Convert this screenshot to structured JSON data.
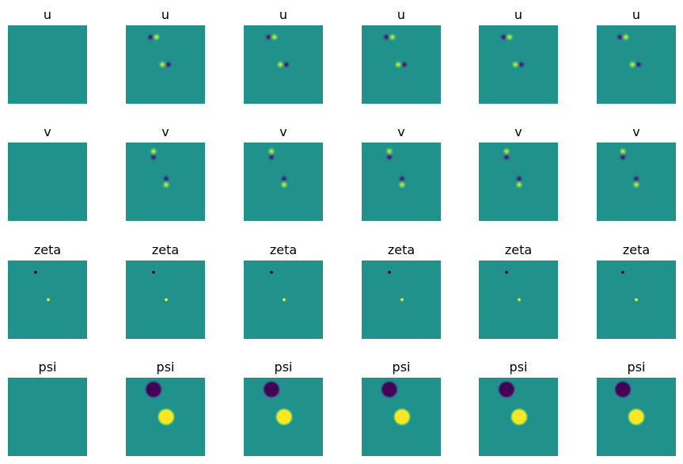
{
  "chart_data": {
    "type": "heatmap",
    "colormap": "viridis",
    "background_value": 0.5,
    "rows": [
      {
        "title": "u"
      },
      {
        "title": "v"
      },
      {
        "title": "zeta"
      },
      {
        "title": "psi"
      }
    ],
    "columns": 6,
    "axes_visible": false,
    "panels": {
      "u": [
        {
          "blank": true
        },
        {
          "dipoles": [
            {
              "cx": 0.35,
              "cy": 0.15,
              "neg": "left"
            },
            {
              "cx": 0.5,
              "cy": 0.5,
              "neg": "right"
            }
          ]
        },
        {
          "dipoles": [
            {
              "cx": 0.35,
              "cy": 0.15,
              "neg": "left"
            },
            {
              "cx": 0.5,
              "cy": 0.5,
              "neg": "right"
            }
          ]
        },
        {
          "dipoles": [
            {
              "cx": 0.35,
              "cy": 0.15,
              "neg": "left"
            },
            {
              "cx": 0.5,
              "cy": 0.5,
              "neg": "right"
            }
          ]
        },
        {
          "dipoles": [
            {
              "cx": 0.35,
              "cy": 0.15,
              "neg": "left"
            },
            {
              "cx": 0.5,
              "cy": 0.5,
              "neg": "right"
            }
          ]
        },
        {
          "dipoles": [
            {
              "cx": 0.33,
              "cy": 0.15,
              "neg": "left"
            },
            {
              "cx": 0.49,
              "cy": 0.5,
              "neg": "right"
            }
          ]
        }
      ],
      "v": [
        {
          "blank": true
        },
        {
          "dipoles": [
            {
              "cx": 0.35,
              "cy": 0.15,
              "neg": "bottom"
            },
            {
              "cx": 0.51,
              "cy": 0.5,
              "neg": "top"
            }
          ]
        },
        {
          "dipoles": [
            {
              "cx": 0.35,
              "cy": 0.15,
              "neg": "bottom"
            },
            {
              "cx": 0.51,
              "cy": 0.5,
              "neg": "top"
            }
          ]
        },
        {
          "dipoles": [
            {
              "cx": 0.35,
              "cy": 0.15,
              "neg": "bottom"
            },
            {
              "cx": 0.51,
              "cy": 0.5,
              "neg": "top"
            }
          ]
        },
        {
          "dipoles": [
            {
              "cx": 0.35,
              "cy": 0.15,
              "neg": "bottom"
            },
            {
              "cx": 0.51,
              "cy": 0.5,
              "neg": "top"
            }
          ]
        },
        {
          "dipoles": [
            {
              "cx": 0.33,
              "cy": 0.15,
              "neg": "bottom"
            },
            {
              "cx": 0.5,
              "cy": 0.5,
              "neg": "top"
            }
          ]
        }
      ],
      "zeta": [
        {
          "spots": [
            {
              "cx": 0.35,
              "cy": 0.15,
              "value": 0.0
            },
            {
              "cx": 0.51,
              "cy": 0.5,
              "value": 1.0
            }
          ]
        },
        {
          "spots": [
            {
              "cx": 0.35,
              "cy": 0.15,
              "value": 0.0
            },
            {
              "cx": 0.51,
              "cy": 0.5,
              "value": 1.0
            }
          ]
        },
        {
          "spots": [
            {
              "cx": 0.35,
              "cy": 0.15,
              "value": 0.0
            },
            {
              "cx": 0.51,
              "cy": 0.5,
              "value": 1.0
            }
          ]
        },
        {
          "spots": [
            {
              "cx": 0.35,
              "cy": 0.15,
              "value": 0.0
            },
            {
              "cx": 0.51,
              "cy": 0.5,
              "value": 1.0
            }
          ]
        },
        {
          "spots": [
            {
              "cx": 0.35,
              "cy": 0.15,
              "value": 0.0
            },
            {
              "cx": 0.51,
              "cy": 0.5,
              "value": 1.0
            }
          ]
        },
        {
          "spots": [
            {
              "cx": 0.33,
              "cy": 0.15,
              "value": 0.0
            },
            {
              "cx": 0.5,
              "cy": 0.5,
              "value": 1.0
            }
          ]
        }
      ],
      "psi": [
        {
          "blank": true
        },
        {
          "spots": [
            {
              "cx": 0.35,
              "cy": 0.15,
              "value": 0.0
            },
            {
              "cx": 0.51,
              "cy": 0.5,
              "value": 1.0
            }
          ]
        },
        {
          "spots": [
            {
              "cx": 0.35,
              "cy": 0.15,
              "value": 0.0
            },
            {
              "cx": 0.51,
              "cy": 0.5,
              "value": 1.0
            }
          ]
        },
        {
          "spots": [
            {
              "cx": 0.35,
              "cy": 0.15,
              "value": 0.0
            },
            {
              "cx": 0.51,
              "cy": 0.5,
              "value": 1.0
            }
          ]
        },
        {
          "spots": [
            {
              "cx": 0.35,
              "cy": 0.15,
              "value": 0.0
            },
            {
              "cx": 0.51,
              "cy": 0.5,
              "value": 1.0
            }
          ]
        },
        {
          "spots": [
            {
              "cx": 0.33,
              "cy": 0.15,
              "value": 0.0
            },
            {
              "cx": 0.5,
              "cy": 0.5,
              "value": 1.0
            }
          ]
        }
      ]
    }
  }
}
